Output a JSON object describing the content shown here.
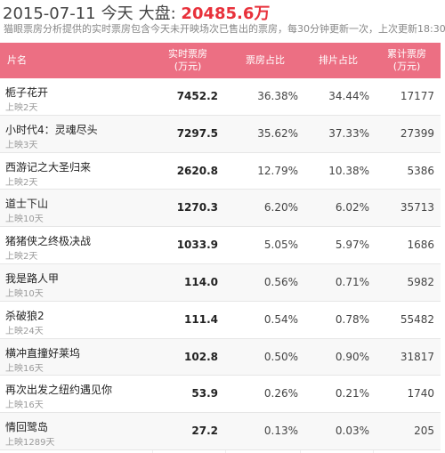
{
  "header": {
    "date": "2015-07-11",
    "today": "今天",
    "market_label": "大盘:",
    "market_value": "20485.6万",
    "note": "猫眼票房分析提供的实时票房包含今天未开映场次已售出的票房，每30分钟更新一次，上次更新18:30"
  },
  "table": {
    "headers": {
      "name": "片名",
      "realtime_line1": "实时票房",
      "realtime_line2": "(万元)",
      "box_share": "票房占比",
      "screening_share": "排片占比",
      "cumulative_line1": "累计票房",
      "cumulative_line2": "(万元)"
    },
    "rows": [
      {
        "title": "栀子花开",
        "days": "上映2天",
        "realtime": "7452.2",
        "box_share": "36.38%",
        "screening_share": "34.44%",
        "cumulative": "17177"
      },
      {
        "title": "小时代4：灵魂尽头",
        "days": "上映3天",
        "realtime": "7297.5",
        "box_share": "35.62%",
        "screening_share": "37.33%",
        "cumulative": "27399"
      },
      {
        "title": "西游记之大圣归来",
        "days": "上映2天",
        "realtime": "2620.8",
        "box_share": "12.79%",
        "screening_share": "10.38%",
        "cumulative": "5386"
      },
      {
        "title": "道士下山",
        "days": "上映10天",
        "realtime": "1270.3",
        "box_share": "6.20%",
        "screening_share": "6.02%",
        "cumulative": "35713"
      },
      {
        "title": "猪猪侠之终极决战",
        "days": "上映2天",
        "realtime": "1033.9",
        "box_share": "5.05%",
        "screening_share": "5.97%",
        "cumulative": "1686"
      },
      {
        "title": "我是路人甲",
        "days": "上映10天",
        "realtime": "114.0",
        "box_share": "0.56%",
        "screening_share": "0.71%",
        "cumulative": "5982"
      },
      {
        "title": "杀破狼2",
        "days": "上映24天",
        "realtime": "111.4",
        "box_share": "0.54%",
        "screening_share": "0.78%",
        "cumulative": "55482"
      },
      {
        "title": "横冲直撞好莱坞",
        "days": "上映16天",
        "realtime": "102.8",
        "box_share": "0.50%",
        "screening_share": "0.90%",
        "cumulative": "31817"
      },
      {
        "title": "再次出发之纽约遇见你",
        "days": "上映16天",
        "realtime": "53.9",
        "box_share": "0.26%",
        "screening_share": "0.21%",
        "cumulative": "1740"
      },
      {
        "title": "情回鹭岛",
        "days": "上映1289天",
        "realtime": "27.2",
        "box_share": "0.13%",
        "screening_share": "0.03%",
        "cumulative": "205"
      }
    ]
  },
  "colors": {
    "header_bg": "#ec6f83",
    "highlight": "#e8313b"
  }
}
